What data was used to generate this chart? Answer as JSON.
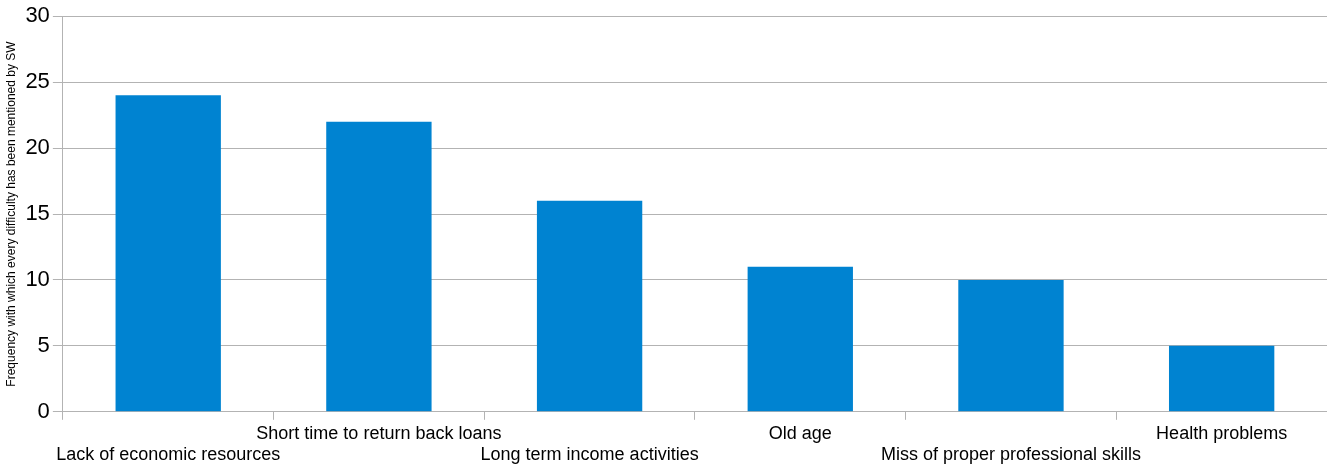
{
  "chart_data": {
    "type": "bar",
    "ylabel": "Frequency with which every difficulty has been mentioned by SW",
    "categories": [
      "Lack of economic resources",
      "Short time to return back loans",
      "Long term income activities",
      "Old age",
      "Miss of proper professional skills",
      "Health problems"
    ],
    "values": [
      24,
      22,
      16,
      11,
      10,
      5
    ],
    "color": "#0083d1",
    "ylim": [
      0,
      30
    ],
    "yticks": [
      0,
      5,
      10,
      15,
      20,
      25,
      30
    ],
    "grid": "y",
    "legend": false
  }
}
